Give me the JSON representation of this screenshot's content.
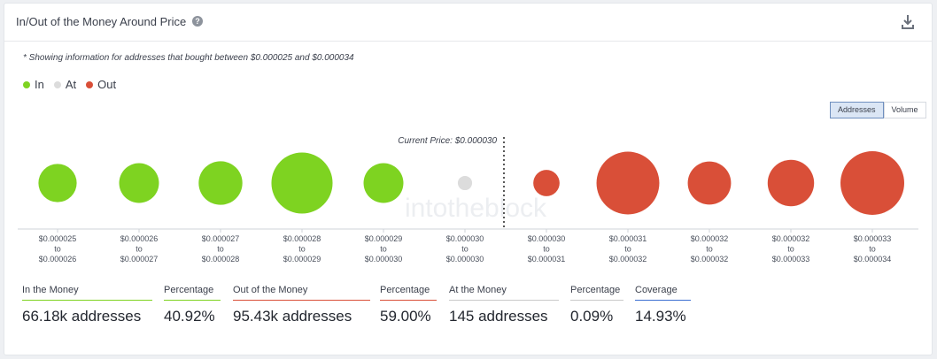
{
  "header": {
    "title": "In/Out of the Money Around Price"
  },
  "note": "* Showing information for addresses that bought between $0.000025 and $0.000034",
  "legend": [
    {
      "label": "In",
      "color": "#7ed321"
    },
    {
      "label": "At",
      "color": "#dcdcdc"
    },
    {
      "label": "Out",
      "color": "#d94f38"
    }
  ],
  "toggle": {
    "addresses": "Addresses",
    "volume": "Volume",
    "active": "addresses"
  },
  "watermark": "intotheblock",
  "chart_data": {
    "type": "bubble",
    "current_price_label": "Current Price: $0.000030",
    "current_price_index": 5.5,
    "colors": {
      "in": "#7ed321",
      "at": "#dcdcdc",
      "out": "#d94f38"
    },
    "buckets": [
      {
        "from": "$0.000025",
        "to": "$0.000026",
        "status": "in",
        "size": 0.36
      },
      {
        "from": "$0.000026",
        "to": "$0.000027",
        "status": "in",
        "size": 0.39
      },
      {
        "from": "$0.000027",
        "to": "$0.000028",
        "status": "in",
        "size": 0.47
      },
      {
        "from": "$0.000028",
        "to": "$0.000029",
        "status": "in",
        "size": 0.92
      },
      {
        "from": "$0.000029",
        "to": "$0.000030",
        "status": "in",
        "size": 0.39
      },
      {
        "from": "$0.000030",
        "to": "$0.000030",
        "status": "at",
        "size": 0.05
      },
      {
        "from": "$0.000030",
        "to": "$0.000031",
        "status": "out",
        "size": 0.17
      },
      {
        "from": "$0.000031",
        "to": "$0.000032",
        "status": "out",
        "size": 0.97
      },
      {
        "from": "$0.000032",
        "to": "$0.000032",
        "status": "out",
        "size": 0.46
      },
      {
        "from": "$0.000032",
        "to": "$0.000033",
        "status": "out",
        "size": 0.53
      },
      {
        "from": "$0.000033",
        "to": "$0.000034",
        "status": "out",
        "size": 1.0
      }
    ],
    "to_word": "to"
  },
  "stats": [
    {
      "label": "In the Money",
      "value": "66.18k addresses",
      "rule_color": "#7ed321"
    },
    {
      "label": "Percentage",
      "value": "40.92%",
      "rule_color": "#7ed321"
    },
    {
      "label": "Out of the Money",
      "value": "95.43k addresses",
      "rule_color": "#d94f38"
    },
    {
      "label": "Percentage",
      "value": "59.00%",
      "rule_color": "#d94f38"
    },
    {
      "label": "At the Money",
      "value": "145 addresses",
      "rule_color": "#c9c9c9"
    },
    {
      "label": "Percentage",
      "value": "0.09%",
      "rule_color": "#c9c9c9"
    },
    {
      "label": "Coverage",
      "value": "14.93%",
      "rule_color": "#3b6fd1"
    }
  ]
}
